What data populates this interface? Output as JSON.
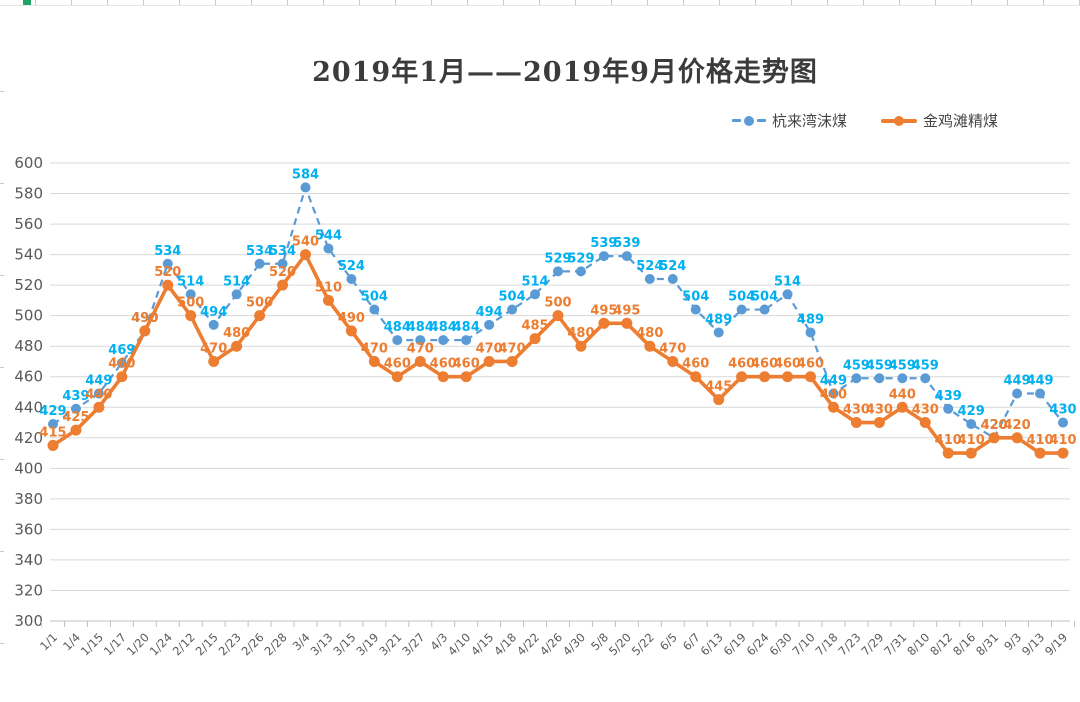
{
  "chart_data": {
    "type": "line",
    "title": "2019年1月——2019年9月价格走势图",
    "xlabel": "",
    "ylabel": "",
    "ylim": [
      300,
      600
    ],
    "yticks": [
      300,
      320,
      340,
      360,
      380,
      400,
      420,
      440,
      460,
      480,
      500,
      520,
      540,
      560,
      580,
      600
    ],
    "grid": true,
    "legend_position": "top-right",
    "axis": {
      "grid_color": "#D9D9D9",
      "line_color": "#BFBFBF",
      "text_color": "#595959"
    },
    "categories": [
      "1/1",
      "1/4",
      "1/15",
      "1/17",
      "1/20",
      "1/24",
      "2/12",
      "2/15",
      "2/23",
      "2/26",
      "2/28",
      "3/4",
      "3/13",
      "3/15",
      "3/19",
      "3/21",
      "3/27",
      "4/3",
      "4/10",
      "4/15",
      "4/18",
      "4/22",
      "4/26",
      "4/30",
      "5/8",
      "5/20",
      "5/22",
      "6/5",
      "6/7",
      "6/13",
      "6/19",
      "6/24",
      "6/30",
      "7/10",
      "7/18",
      "7/23",
      "7/29",
      "7/31",
      "8/10",
      "8/12",
      "8/16",
      "8/31",
      "9/3",
      "9/13",
      "9/19"
    ],
    "series": [
      {
        "name": "杭来湾沫煤",
        "color": "#5B9BD5",
        "label_color": "#00B0F0",
        "line_style": "dashed",
        "values": [
          429,
          439,
          449,
          469,
          490,
          534,
          514,
          494,
          514,
          534,
          534,
          584,
          544,
          524,
          504,
          484,
          484,
          484,
          484,
          494,
          504,
          514,
          529,
          529,
          539,
          539,
          524,
          524,
          504,
          489,
          504,
          504,
          514,
          489,
          449,
          459,
          459,
          459,
          459,
          439,
          429,
          420,
          449,
          449,
          430
        ]
      },
      {
        "name": "金鸡滩精煤",
        "color": "#ED7D31",
        "label_color": "#ED7D31",
        "line_style": "solid",
        "values": [
          415,
          425,
          440,
          460,
          490,
          520,
          500,
          470,
          480,
          500,
          520,
          540,
          510,
          490,
          470,
          460,
          470,
          460,
          460,
          470,
          470,
          485,
          500,
          480,
          495,
          495,
          480,
          470,
          460,
          445,
          460,
          460,
          460,
          460,
          440,
          430,
          430,
          440,
          430,
          410,
          410,
          420,
          420,
          410,
          410
        ]
      }
    ]
  }
}
